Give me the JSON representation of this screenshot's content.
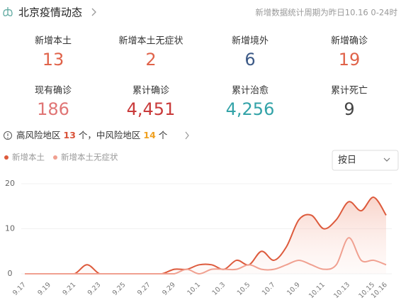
{
  "header": {
    "title": "北京疫情动态",
    "subtitle": "新增数据统计周期为昨日10.16 0-24时"
  },
  "stats": [
    {
      "label": "新增本土",
      "value": "13",
      "color": "#e0634a"
    },
    {
      "label": "新增本土无症状",
      "value": "2",
      "color": "#e0634a"
    },
    {
      "label": "新增境外",
      "value": "6",
      "color": "#3d5a87"
    },
    {
      "label": "新增确诊",
      "value": "19",
      "color": "#e0634a"
    },
    {
      "label": "现有确诊",
      "value": "186",
      "color": "#e07575"
    },
    {
      "label": "累计确诊",
      "value": "4,451",
      "color": "#c93a3a"
    },
    {
      "label": "累计治愈",
      "value": "4,256",
      "color": "#33a3a8"
    },
    {
      "label": "累计死亡",
      "value": "9",
      "color": "#444444"
    }
  ],
  "risk": {
    "high_label": "高风险地区",
    "high": "13",
    "high_unit": "个，中风险地区",
    "mid": "14",
    "mid_unit": "个"
  },
  "dropdown": "按日",
  "chart_data": {
    "type": "line",
    "categories": [
      "9.17",
      null,
      "9.19",
      null,
      "9.21",
      null,
      "9.23",
      null,
      "9.25",
      null,
      "9.27",
      null,
      "9.29",
      null,
      "10.1",
      null,
      "10.3",
      null,
      "10.5",
      null,
      "10.7",
      null,
      "10.9",
      null,
      "10.11",
      null,
      "10.13",
      null,
      "10.15",
      "10.16"
    ],
    "series": [
      {
        "name": "新增本土",
        "color": "#dd5a3c",
        "values": [
          0,
          0,
          0,
          0,
          0,
          2,
          0,
          0,
          0,
          0,
          0,
          0,
          1,
          1,
          2,
          2,
          1,
          3,
          2,
          5,
          3,
          6,
          12,
          13,
          10,
          12,
          16,
          14,
          17,
          13
        ]
      },
      {
        "name": "新增本土无症状",
        "color": "#f0a090",
        "values": [
          0,
          0,
          0,
          0,
          0,
          0,
          0,
          0,
          0,
          0,
          0,
          0,
          0,
          1,
          0,
          1,
          1,
          1,
          2,
          1,
          1,
          2,
          3,
          2,
          1,
          2,
          8,
          3,
          3,
          2
        ]
      }
    ],
    "ylim": [
      0,
      20
    ],
    "yticks": [
      0,
      10,
      20
    ],
    "grid": true
  }
}
